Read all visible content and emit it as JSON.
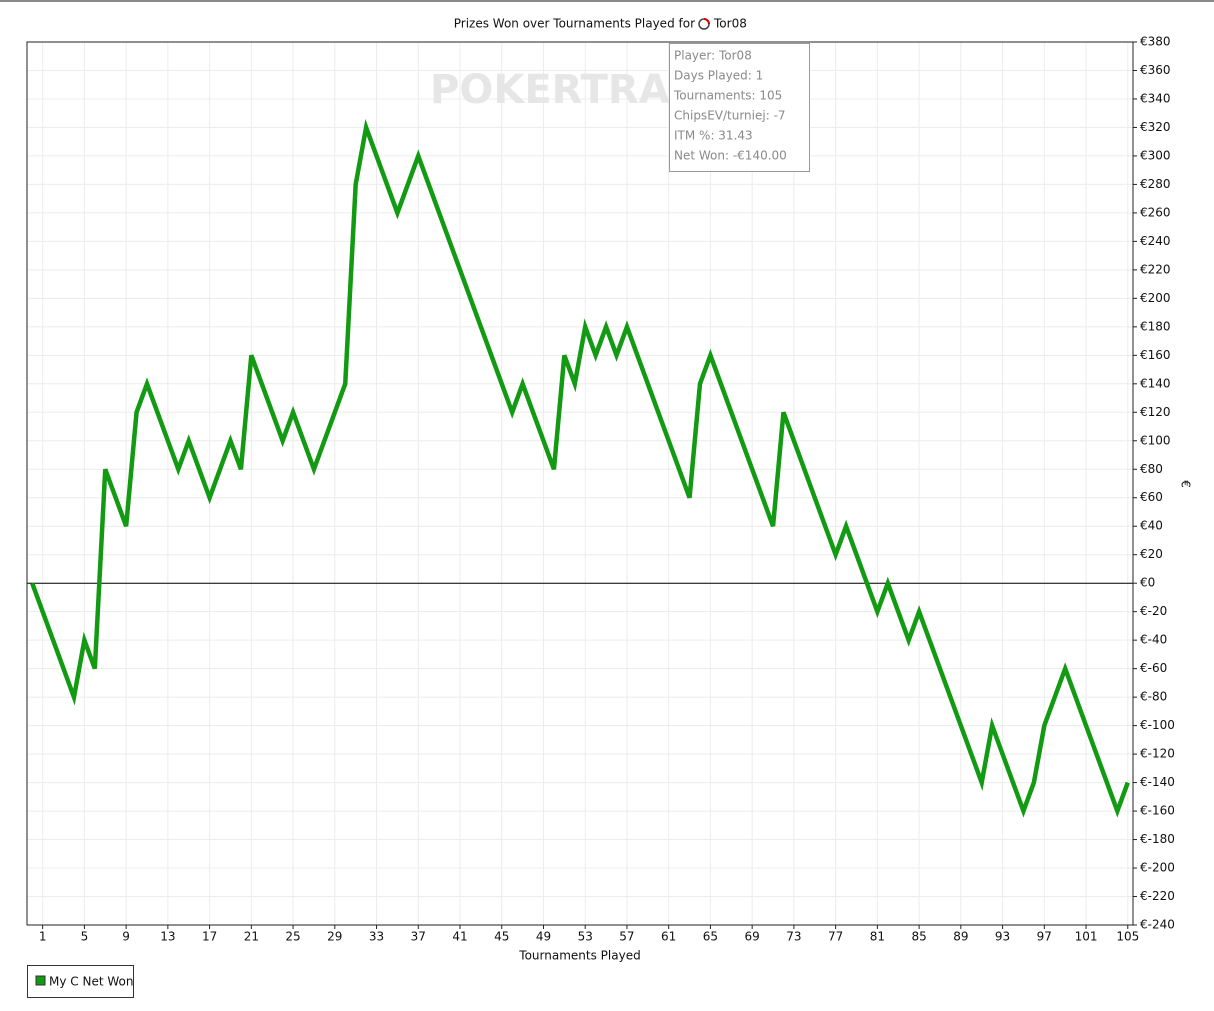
{
  "chart_data": {
    "type": "line",
    "title": "Prizes Won over Tournaments Played for",
    "player": "Tor08",
    "x_label": "Tournaments Played",
    "y_label": "€",
    "watermark": "POKERTRACKER",
    "x": [
      0,
      1,
      2,
      3,
      4,
      5,
      6,
      7,
      8,
      9,
      10,
      11,
      12,
      13,
      14,
      15,
      16,
      17,
      18,
      19,
      20,
      21,
      22,
      23,
      24,
      25,
      26,
      27,
      28,
      29,
      30,
      31,
      32,
      33,
      34,
      35,
      36,
      37,
      38,
      39,
      40,
      41,
      42,
      43,
      44,
      45,
      46,
      47,
      48,
      49,
      50,
      51,
      52,
      53,
      54,
      55,
      56,
      57,
      58,
      59,
      60,
      61,
      62,
      63,
      64,
      65,
      66,
      67,
      68,
      69,
      70,
      71,
      72,
      73,
      74,
      75,
      76,
      77,
      78,
      79,
      80,
      81,
      82,
      83,
      84,
      85,
      86,
      87,
      88,
      89,
      90,
      91,
      92,
      93,
      94,
      95,
      96,
      97,
      98,
      99,
      100,
      101,
      102,
      103,
      104,
      105
    ],
    "series": [
      {
        "name": "My C Net Won",
        "color": "#139a13",
        "values": [
          0,
          -20,
          -40,
          -60,
          -80,
          -40,
          -60,
          80,
          60,
          40,
          120,
          140,
          120,
          100,
          80,
          100,
          80,
          60,
          80,
          100,
          80,
          160,
          140,
          120,
          100,
          120,
          100,
          80,
          100,
          120,
          140,
          280,
          320,
          300,
          280,
          260,
          280,
          300,
          280,
          260,
          240,
          220,
          200,
          180,
          160,
          140,
          120,
          140,
          120,
          100,
          80,
          160,
          140,
          180,
          160,
          180,
          160,
          180,
          160,
          140,
          120,
          100,
          80,
          60,
          140,
          160,
          140,
          120,
          100,
          80,
          60,
          40,
          120,
          100,
          80,
          60,
          40,
          20,
          40,
          20,
          0,
          -20,
          0,
          -20,
          -40,
          -20,
          -40,
          -60,
          -80,
          -100,
          -120,
          -140,
          -100,
          -120,
          -140,
          -160,
          -140,
          -100,
          -80,
          -60,
          -80,
          -100,
          -120,
          -140,
          -160,
          -140
        ]
      }
    ],
    "xlim": [
      -0.5,
      105.5
    ],
    "xticks": [
      1,
      5,
      9,
      13,
      17,
      21,
      25,
      29,
      33,
      37,
      41,
      45,
      49,
      53,
      57,
      61,
      65,
      69,
      73,
      77,
      81,
      85,
      89,
      93,
      97,
      101,
      105
    ],
    "ylim": [
      -240,
      380
    ],
    "yticks": [
      {
        "value": -240,
        "label": "€-240"
      },
      {
        "value": -220,
        "label": "€-220"
      },
      {
        "value": -200,
        "label": "€-200"
      },
      {
        "value": -180,
        "label": "€-180"
      },
      {
        "value": -160,
        "label": "€-160"
      },
      {
        "value": -140,
        "label": "€-140"
      },
      {
        "value": -120,
        "label": "€-120"
      },
      {
        "value": -100,
        "label": "€-100"
      },
      {
        "value": -80,
        "label": "€-80"
      },
      {
        "value": -60,
        "label": "€-60"
      },
      {
        "value": -40,
        "label": "€-40"
      },
      {
        "value": -20,
        "label": "€-20"
      },
      {
        "value": 0,
        "label": "€0"
      },
      {
        "value": 20,
        "label": "€20"
      },
      {
        "value": 40,
        "label": "€40"
      },
      {
        "value": 60,
        "label": "€60"
      },
      {
        "value": 80,
        "label": "€80"
      },
      {
        "value": 100,
        "label": "€100"
      },
      {
        "value": 120,
        "label": "€120"
      },
      {
        "value": 140,
        "label": "€140"
      },
      {
        "value": 160,
        "label": "€160"
      },
      {
        "value": 180,
        "label": "€180"
      },
      {
        "value": 200,
        "label": "€200"
      },
      {
        "value": 220,
        "label": "€220"
      },
      {
        "value": 240,
        "label": "€240"
      },
      {
        "value": 260,
        "label": "€260"
      },
      {
        "value": 280,
        "label": "€280"
      },
      {
        "value": 300,
        "label": "€300"
      },
      {
        "value": 320,
        "label": "€320"
      },
      {
        "value": 340,
        "label": "€340"
      },
      {
        "value": 360,
        "label": "€360"
      },
      {
        "value": 380,
        "label": "€380"
      }
    ],
    "grid": true,
    "tooltip": [
      "Player: Tor08",
      "Days Played: 1",
      "Tournaments: 105",
      "ChipsEV/turniej: -7",
      "ITM %: 31.43",
      "Net Won: -€140.00"
    ]
  }
}
